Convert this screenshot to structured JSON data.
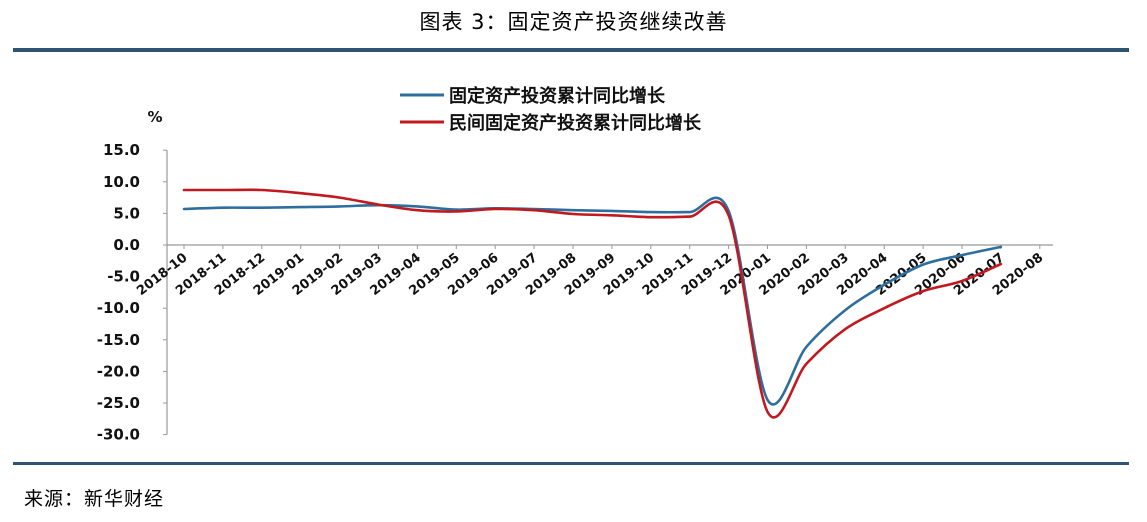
{
  "header": {
    "title": "图表 3：固定资产投资继续改善"
  },
  "footer": {
    "source": "来源：新华财经"
  },
  "chart_data": {
    "type": "line",
    "ylabel": "%",
    "ylim": [
      -30,
      15
    ],
    "yticks": [
      "15.0",
      "10.0",
      "5.0",
      "0.0",
      "-5.0",
      "-10.0",
      "-15.0",
      "-20.0",
      "-25.0",
      "-30.0"
    ],
    "ytick_values": [
      15,
      10,
      5,
      0,
      -5,
      -10,
      -15,
      -20,
      -25,
      -30
    ],
    "categories": [
      "2018-10",
      "2018-11",
      "2018-12",
      "2019-01",
      "2019-02",
      "2019-03",
      "2019-04",
      "2019-05",
      "2019-06",
      "2019-07",
      "2019-08",
      "2019-09",
      "2019-10",
      "2019-11",
      "2019-12",
      "2020-01",
      "2020-02",
      "2020-03",
      "2020-04",
      "2020-05",
      "2020-06",
      "2020-07",
      "2020-08"
    ],
    "legend_position": "top-center",
    "series": [
      {
        "name": "固定资产投资累计同比增长",
        "color": "#2e6e9e",
        "values": [
          5.7,
          5.9,
          5.9,
          6.0,
          6.1,
          6.3,
          6.1,
          5.6,
          5.8,
          5.7,
          5.5,
          5.4,
          5.2,
          5.2,
          5.4,
          -24.5,
          -16.1,
          -10.3,
          -6.3,
          -3.1,
          -1.6,
          -0.3,
          null
        ]
      },
      {
        "name": "民间固定资产投资累计同比增长",
        "color": "#c0191f",
        "values": [
          8.7,
          8.7,
          8.7,
          8.2,
          7.5,
          6.4,
          5.5,
          5.3,
          5.7,
          5.5,
          4.9,
          4.7,
          4.4,
          4.5,
          4.7,
          -26.4,
          -18.8,
          -13.3,
          -10.0,
          -7.3,
          -5.7,
          -3.0,
          null
        ]
      }
    ]
  }
}
